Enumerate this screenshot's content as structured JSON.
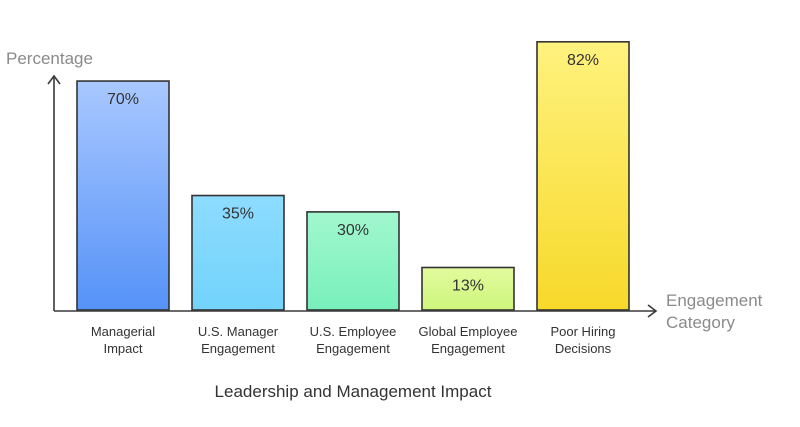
{
  "chart_data": {
    "type": "bar",
    "title": "Leadership and Management Impact",
    "ylabel": "Percentage",
    "xlabel_lines": [
      "Engagement",
      "Category"
    ],
    "ylim": [
      0,
      85
    ],
    "grid": false,
    "legend": "none",
    "categories": [
      "Managerial Impact",
      "U.S. Manager Engagement",
      "U.S. Employee Engagement",
      "Global Employee Engagement",
      "Poor Hiring Decisions"
    ],
    "category_lines": [
      [
        "Managerial",
        "Impact"
      ],
      [
        "U.S. Manager",
        "Engagement"
      ],
      [
        "U.S. Employee",
        "Engagement"
      ],
      [
        "Global Employee",
        "Engagement"
      ],
      [
        "Poor Hiring",
        "Decisions"
      ]
    ],
    "values": [
      70,
      35,
      30,
      13,
      82
    ],
    "value_labels": [
      "70%",
      "35%",
      "30%",
      "13%",
      "82%"
    ],
    "bar_colors": [
      [
        "#a9c8ff",
        "#5592f7"
      ],
      [
        "#8ddcff",
        "#72d3fb"
      ],
      [
        "#a2f7cf",
        "#78f0bb"
      ],
      [
        "#e2fb9e",
        "#cef57c"
      ],
      [
        "#fff27e",
        "#f7d92a"
      ]
    ]
  }
}
